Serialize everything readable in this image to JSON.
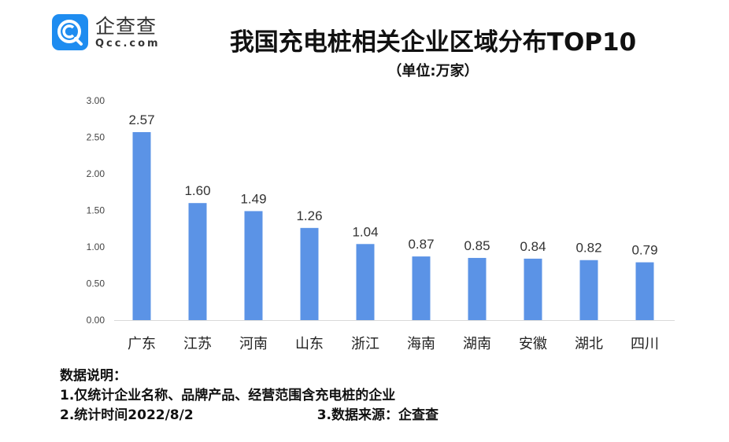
{
  "logo": {
    "cn": "企查查",
    "en": "Qcc.com",
    "color": "#1e8cf0"
  },
  "title": "我国充电桩相关企业区域分布TOP10",
  "subtitle": "（单位:万家）",
  "chart_data": {
    "type": "bar",
    "title": "我国充电桩相关企业区域分布TOP10",
    "unit": "（单位:万家）",
    "categories": [
      "广东",
      "江苏",
      "河南",
      "山东",
      "浙江",
      "海南",
      "湖南",
      "安徽",
      "湖北",
      "四川"
    ],
    "values": [
      2.57,
      1.6,
      1.49,
      1.26,
      1.04,
      0.87,
      0.85,
      0.84,
      0.82,
      0.79
    ],
    "value_labels": [
      "2.57",
      "1.60",
      "1.49",
      "1.26",
      "1.04",
      "0.87",
      "0.85",
      "0.84",
      "0.82",
      "0.79"
    ],
    "ylim": [
      0,
      3
    ],
    "yticks": [
      "0.00",
      "0.50",
      "1.00",
      "1.50",
      "2.00",
      "2.50",
      "3.00"
    ],
    "bar_color": "#5b93e6",
    "grid": false,
    "legend": "none"
  },
  "notes": {
    "heading": "数据说明：",
    "line1": "1.仅统计企业名称、品牌产品、经营范围含充电桩的企业",
    "line2": "2.统计时间2022/8/2",
    "line3": "3.数据来源：企查查"
  }
}
